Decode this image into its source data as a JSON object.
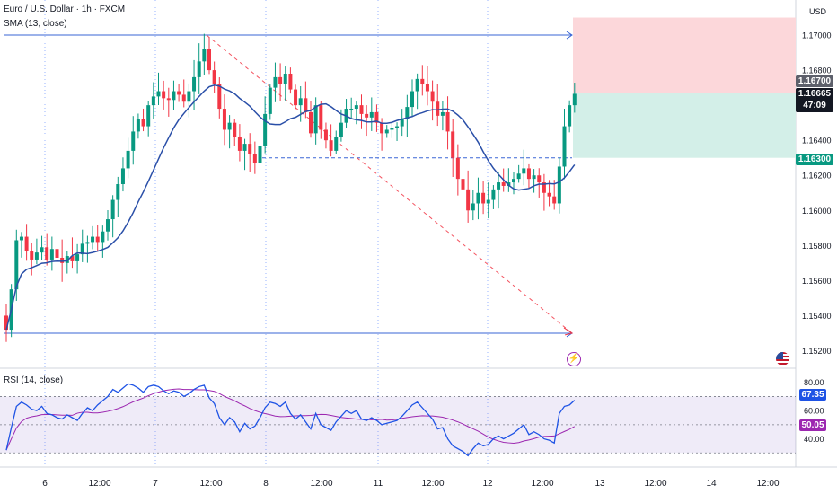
{
  "header": {
    "symbol_title": "Euro / U.S. Dollar · 1h · FXCM",
    "sma_label": "SMA (13, close)",
    "rsi_label": "RSI (14, close)"
  },
  "price_axis": {
    "currency": "USD",
    "ticks": [
      "1.17000",
      "1.16800",
      "1.16400",
      "1.16200",
      "1.16000",
      "1.15800",
      "1.15600",
      "1.15400",
      "1.15200"
    ],
    "target_tag": "1.16700",
    "current_price": "1.16665",
    "countdown": "47:09",
    "stop_tag": "1.16300"
  },
  "rsi_axis": {
    "ticks": [
      "80.00",
      "60.00",
      "40.00"
    ],
    "rsi_value": "67.35",
    "rsi_ma_value": "50.05"
  },
  "time_axis": {
    "labels": [
      "6",
      "12:00",
      "7",
      "12:00",
      "8",
      "12:00",
      "11",
      "12:00",
      "12",
      "12:00",
      "13",
      "12:00",
      "14",
      "12:00"
    ]
  },
  "colors": {
    "up": "#089981",
    "down": "#f23645",
    "sma": "#2a4fa8",
    "rsi": "#1e53e5",
    "rsi_ma": "#9c27b0",
    "target_zone": "#fcd7da",
    "stop_zone": "#d3efe8",
    "drawing_line": "#3a66d6",
    "trend_line": "#f23645"
  },
  "icons": [
    "flash-icon",
    "us-flag-icon"
  ],
  "chart_data": {
    "type": "candlestick",
    "title": "Euro / U.S. Dollar · 1h · FXCM",
    "indicators": [
      "SMA (13, close)",
      "RSI (14, close)"
    ],
    "price_range": [
      1.151,
      1.172
    ],
    "rsi_range": [
      20,
      90
    ],
    "long_position": {
      "entry": 1.1667,
      "stop": 1.163,
      "target": 1.171
    },
    "horizontal_levels": [
      1.17,
      1.153,
      1.163
    ],
    "trend_line": {
      "from": 1.17,
      "to": 1.153
    },
    "last": {
      "price": 1.16665,
      "rsi": 67.35,
      "rsi_ma": 50.05
    },
    "closes": [
      1.1532,
      1.1555,
      1.1583,
      1.1585,
      1.1577,
      1.1572,
      1.1576,
      1.1579,
      1.1572,
      1.1578,
      1.1573,
      1.157,
      1.1574,
      1.1571,
      1.1575,
      1.1581,
      1.1582,
      1.1585,
      1.1582,
      1.1588,
      1.1595,
      1.1606,
      1.1615,
      1.1624,
      1.1634,
      1.1645,
      1.1652,
      1.1648,
      1.166,
      1.1665,
      1.1668,
      1.1664,
      1.1663,
      1.1668,
      1.1666,
      1.1662,
      1.1668,
      1.1676,
      1.1685,
      1.1692,
      1.168,
      1.1672,
      1.1658,
      1.1646,
      1.165,
      1.1642,
      1.1634,
      1.1638,
      1.1632,
      1.1627,
      1.1637,
      1.1655,
      1.167,
      1.1676,
      1.1672,
      1.1678,
      1.1669,
      1.166,
      1.1664,
      1.1656,
      1.1644,
      1.166,
      1.1646,
      1.164,
      1.1634,
      1.1642,
      1.165,
      1.1658,
      1.1658,
      1.166,
      1.1655,
      1.1653,
      1.1656,
      1.165,
      1.1644,
      1.1646,
      1.1647,
      1.1648,
      1.1652,
      1.1659,
      1.1668,
      1.1675,
      1.1672,
      1.1668,
      1.1662,
      1.1654,
      1.1656,
      1.1645,
      1.163,
      1.1618,
      1.1612,
      1.16,
      1.1604,
      1.161,
      1.1604,
      1.1606,
      1.1612,
      1.1616,
      1.1614,
      1.1616,
      1.1618,
      1.1621,
      1.1624,
      1.1618,
      1.162,
      1.1616,
      1.161,
      1.1608,
      1.1604,
      1.1625,
      1.1648,
      1.166,
      1.16665
    ],
    "rsi": [
      32,
      48,
      63,
      66,
      64,
      61,
      60,
      63,
      58,
      57,
      55,
      54,
      57,
      55,
      53,
      58,
      62,
      60,
      64,
      67,
      70,
      75,
      73,
      76,
      79,
      78,
      76,
      73,
      77,
      78,
      77,
      74,
      72,
      74,
      73,
      70,
      72,
      75,
      77,
      78,
      69,
      65,
      55,
      50,
      55,
      52,
      45,
      51,
      47,
      49,
      55,
      62,
      66,
      65,
      63,
      66,
      58,
      54,
      57,
      52,
      47,
      58,
      50,
      48,
      46,
      52,
      56,
      60,
      58,
      60,
      54,
      53,
      55,
      53,
      50,
      51,
      52,
      53,
      56,
      60,
      64,
      66,
      62,
      58,
      54,
      47,
      48,
      40,
      35,
      33,
      31,
      28,
      33,
      37,
      35,
      36,
      40,
      42,
      40,
      42,
      44,
      47,
      50,
      43,
      45,
      43,
      40,
      39,
      37,
      58,
      63,
      64,
      67.35
    ]
  }
}
